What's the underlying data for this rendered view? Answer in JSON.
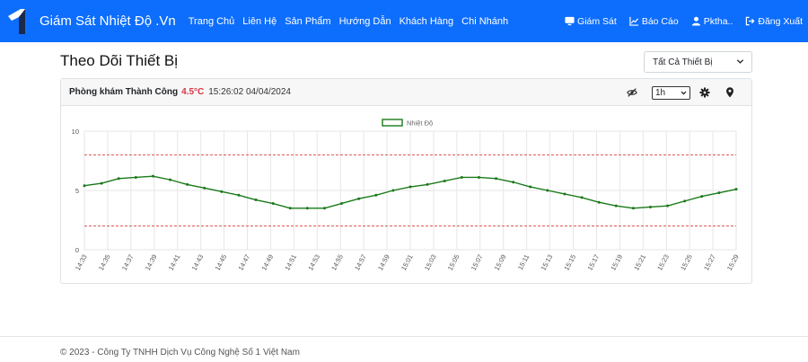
{
  "navbar": {
    "brand": "Giám Sát Nhiệt Độ .Vn",
    "links": [
      "Trang Chủ",
      "Liên Hệ",
      "Sản Phẩm",
      "Hướng Dẫn",
      "Khách Hàng",
      "Chi Nhánh"
    ],
    "right": [
      {
        "label": "Giám Sát",
        "icon": "monitor-icon"
      },
      {
        "label": "Báo Cáo",
        "icon": "line-chart-icon"
      },
      {
        "label": "Pktha..",
        "icon": "user-icon"
      },
      {
        "label": "Đăng Xuất",
        "icon": "logout-icon"
      }
    ]
  },
  "page": {
    "title": "Theo Dõi Thiết Bị",
    "device_filter": "Tất Cả Thiết Bị"
  },
  "device_card": {
    "location": "Phòng khám Thành Công",
    "temperature": "4.5°C",
    "timestamp": "15:26:02 04/04/2024",
    "time_range": "1h"
  },
  "chart_data": {
    "type": "line",
    "series": [
      {
        "name": "Nhiệt Độ",
        "color": "#1a7a1a",
        "values": [
          5.4,
          5.6,
          6.0,
          6.1,
          6.2,
          5.9,
          5.5,
          5.2,
          4.9,
          4.6,
          4.2,
          3.9,
          3.5,
          3.5,
          3.5,
          3.9,
          4.3,
          4.6,
          5.0,
          5.3,
          5.5,
          5.8,
          6.1,
          6.1,
          6.0,
          5.7,
          5.3,
          5.0,
          4.7,
          4.4,
          4.0,
          3.7,
          3.5,
          3.6,
          3.7,
          4.1,
          4.5,
          4.8,
          5.1
        ]
      }
    ],
    "x_labels": [
      "14:33",
      "14:35",
      "14:37",
      "14:39",
      "14:41",
      "14:43",
      "14:45",
      "14:47",
      "14:49",
      "14:51",
      "14:53",
      "14:55",
      "14:57",
      "14:59",
      "15:01",
      "15:03",
      "15:05",
      "15:07",
      "15:09",
      "15:11",
      "15:13",
      "15:15",
      "15:17",
      "15:19",
      "15:21",
      "15:23",
      "15:25",
      "15:27",
      "15:29"
    ],
    "y_ticks": [
      0,
      5,
      10
    ],
    "ylim": [
      0,
      10
    ],
    "threshold_upper": 8,
    "threshold_lower": 2,
    "threshold_color": "#d9534f",
    "grid": true,
    "legend_position": "top-center"
  },
  "footer": {
    "text": "© 2023 - Công Ty TNHH Dịch Vụ Công Nghệ Số 1 Việt Nam"
  }
}
